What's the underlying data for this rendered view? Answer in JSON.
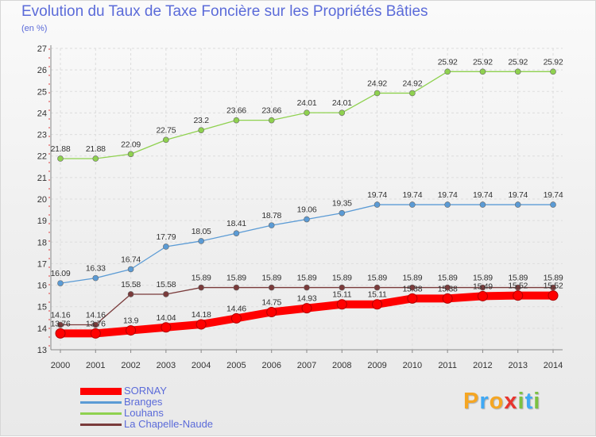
{
  "header": {
    "title": "Evolution du Taux de Taxe Foncière sur les Propriétés Bâties",
    "unit": "(en %)"
  },
  "brand": {
    "letters": [
      "P",
      "r",
      "o",
      "x",
      "i",
      "t",
      "i"
    ],
    "colors": [
      "#f5a623",
      "#3fa9f5",
      "#f5a623",
      "#e8352e",
      "#7cc142",
      "#3fa9f5",
      "#7cc142"
    ]
  },
  "chart_data": {
    "type": "line",
    "x": [
      "2000",
      "2001",
      "2002",
      "2003",
      "2004",
      "2005",
      "2006",
      "2007",
      "2008",
      "2009",
      "2010",
      "2011",
      "2012",
      "2013",
      "2014"
    ],
    "ylim": [
      13,
      27
    ],
    "yticks": [
      "13",
      "14",
      "15",
      "16",
      "17",
      "18",
      "19",
      "20",
      "21",
      "22",
      "23",
      "24",
      "25",
      "26",
      "27"
    ],
    "grid": true,
    "legend_position": "bottom-left",
    "series": [
      {
        "name": "SORNAY",
        "color": "#ff0000",
        "values": [
          13.76,
          13.76,
          13.9,
          14.04,
          14.18,
          14.46,
          14.75,
          14.93,
          15.11,
          15.11,
          15.38,
          15.38,
          15.49,
          15.52,
          15.52
        ],
        "labels": [
          "13.76",
          "13.76",
          "13.9",
          "14.04",
          "14.18",
          "14.46",
          "14.75",
          "14.93",
          "15.11",
          "15.11",
          "15.38",
          "15.38",
          "15.49",
          "15.52",
          "15.52"
        ]
      },
      {
        "name": "Branges",
        "color": "#5b9bd5",
        "values": [
          16.09,
          16.33,
          16.74,
          17.79,
          18.05,
          18.41,
          18.78,
          19.06,
          19.35,
          19.74,
          19.74,
          19.74,
          19.74,
          19.74,
          19.74
        ],
        "labels": [
          "16.09",
          "16.33",
          "16.74",
          "17.79",
          "18.05",
          "18.41",
          "18.78",
          "19.06",
          "19.35",
          "19.74",
          "19.74",
          "19.74",
          "19.74",
          "19.74",
          "19.74"
        ]
      },
      {
        "name": "Louhans",
        "color": "#8fd14f",
        "values": [
          21.88,
          21.88,
          22.09,
          22.75,
          23.2,
          23.66,
          23.66,
          24.01,
          24.01,
          24.92,
          24.92,
          25.92,
          25.92,
          25.92,
          25.92
        ],
        "labels": [
          "21.88",
          "21.88",
          "22.09",
          "22.75",
          "23.2",
          "23.66",
          "23.66",
          "24.01",
          "24.01",
          "24.92",
          "24.92",
          "25.92",
          "25.92",
          "25.92",
          "25.92"
        ]
      },
      {
        "name": "La Chapelle-Naude",
        "color": "#7a3b3b",
        "values": [
          14.16,
          14.16,
          15.58,
          15.58,
          15.89,
          15.89,
          15.89,
          15.89,
          15.89,
          15.89,
          15.89,
          15.89,
          15.89,
          15.89,
          15.89
        ],
        "labels": [
          "14.16",
          "14.16",
          "15.58",
          "15.58",
          "15.89",
          "15.89",
          "15.89",
          "15.89",
          "15.89",
          "15.89",
          "15.89",
          "15.89",
          "15.89",
          "15.89",
          "15.89"
        ]
      }
    ]
  }
}
